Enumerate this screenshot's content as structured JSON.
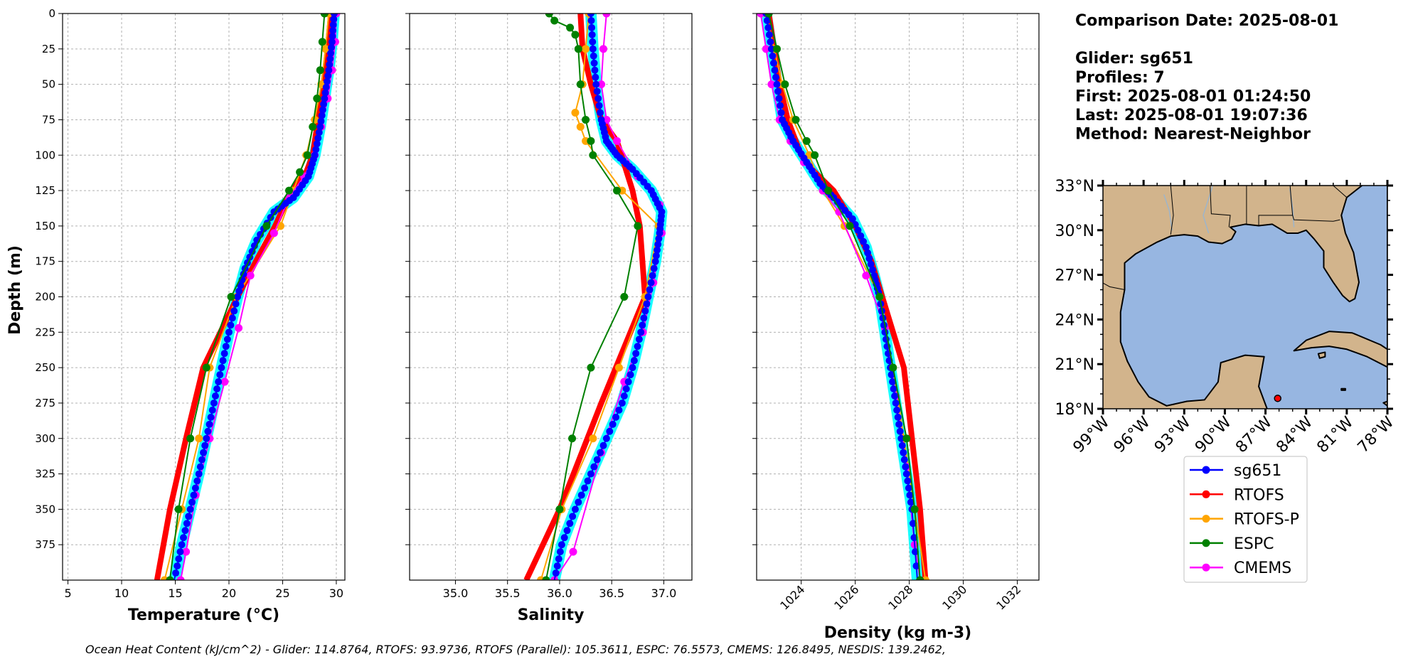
{
  "figure": {
    "ylabel": "Depth (m)",
    "footer": "Ocean Heat Content (kJ/cm^2) - Glider: 114.8764,  RTOFS: 93.9736,  RTOFS (Parallel): 105.3611,  ESPC: 76.5573,  CMEMS: 126.8495,  NESDIS: 139.2462,"
  },
  "info": {
    "lines": [
      "Comparison Date: 2025-08-01",
      "",
      "Glider: sg651",
      "Profiles: 7",
      "First: 2025-08-01 01:24:50",
      "Last: 2025-08-01 19:07:36",
      "Method: Nearest-Neighbor"
    ]
  },
  "legend": {
    "entries": [
      {
        "label": "sg651",
        "color": "#0000ff"
      },
      {
        "label": "RTOFS",
        "color": "#ff0000"
      },
      {
        "label": "RTOFS-P",
        "color": "#ffa500"
      },
      {
        "label": "ESPC",
        "color": "#008000"
      },
      {
        "label": "CMEMS",
        "color": "#ff00ff"
      }
    ]
  },
  "map": {
    "lat_labels": [
      "33°N",
      "30°N",
      "27°N",
      "24°N",
      "21°N",
      "18°N"
    ],
    "lon_labels": [
      "99°W",
      "96°W",
      "93°W",
      "90°W",
      "87°W",
      "84°W",
      "81°W",
      "78°W"
    ],
    "extent": {
      "lon": [
        -99,
        -78
      ],
      "lat": [
        18,
        33
      ]
    },
    "glider_position": {
      "lon": -86.1,
      "lat": 18.7
    },
    "land_color": "#d2b48c",
    "ocean_color": "#97b6e1"
  },
  "chart_data": [
    {
      "type": "line",
      "xlabel": "Temperature (°C)",
      "ylabel": "Depth (m)",
      "xlim": [
        4.5,
        30.8
      ],
      "ylim": [
        400,
        0
      ],
      "xticks": [
        5,
        10,
        15,
        20,
        25,
        30
      ],
      "yticks": [
        0,
        25,
        50,
        75,
        100,
        125,
        150,
        175,
        200,
        225,
        250,
        275,
        300,
        325,
        350,
        375
      ],
      "grid": true,
      "series": [
        {
          "name": "sg651",
          "color": "#0000ff",
          "x": [
            29.8,
            29.6,
            29.3,
            28.9,
            28.5,
            28.0,
            27.4,
            26.0,
            24.2,
            22.6,
            21.5,
            20.8,
            20.0,
            19.3,
            18.6,
            17.9,
            17.2,
            16.4,
            15.6,
            14.9
          ],
          "y": [
            0,
            20,
            40,
            60,
            80,
            100,
            115,
            130,
            140,
            160,
            180,
            200,
            225,
            250,
            275,
            300,
            325,
            350,
            375,
            400
          ]
        },
        {
          "name": "RTOFS",
          "color": "#ff0000",
          "x": [
            29.5,
            29.2,
            28.8,
            28.3,
            27.8,
            27.2,
            25.8,
            24.3,
            22.5,
            20.8,
            19.2,
            17.6,
            16.0,
            14.5,
            13.3
          ],
          "y": [
            0,
            25,
            50,
            75,
            100,
            112,
            125,
            150,
            175,
            200,
            225,
            250,
            300,
            350,
            400
          ]
        },
        {
          "name": "RTOFS-P",
          "color": "#ffa500",
          "x": [
            29.3,
            29.0,
            28.6,
            28.0,
            27.2,
            26.0,
            24.8,
            20.7,
            18.2,
            17.2,
            15.6,
            14.0
          ],
          "y": [
            0,
            25,
            50,
            75,
            100,
            125,
            150,
            200,
            250,
            300,
            350,
            400
          ]
        },
        {
          "name": "ESPC",
          "color": "#008000",
          "x": [
            28.9,
            28.7,
            28.5,
            28.2,
            27.8,
            27.3,
            26.6,
            25.6,
            23.5,
            20.2,
            17.9,
            16.4,
            15.3,
            14.5
          ],
          "y": [
            0,
            20,
            40,
            60,
            80,
            100,
            112,
            125,
            150,
            200,
            250,
            300,
            350,
            400
          ]
        },
        {
          "name": "CMEMS",
          "color": "#ff00ff",
          "x": [
            30.0,
            29.9,
            29.6,
            29.2,
            28.6,
            28.0,
            27.0,
            25.6,
            24.2,
            22.0,
            20.9,
            19.6,
            18.2,
            16.9,
            16.0,
            15.5
          ],
          "y": [
            0,
            20,
            40,
            60,
            80,
            100,
            115,
            130,
            155,
            185,
            222,
            260,
            300,
            340,
            380,
            400
          ]
        }
      ]
    },
    {
      "type": "line",
      "xlabel": "Salinity",
      "ylabel": "",
      "xlim": [
        34.56,
        37.27
      ],
      "ylim": [
        400,
        0
      ],
      "xticks": [
        35.0,
        35.5,
        36.0,
        36.5,
        37.0
      ],
      "grid": true,
      "series": [
        {
          "name": "sg651",
          "color": "#0000ff",
          "x": [
            36.3,
            36.32,
            36.35,
            36.4,
            36.45,
            36.55,
            36.7,
            36.88,
            36.98,
            36.96,
            36.92,
            36.85,
            36.78,
            36.7,
            36.6,
            36.45,
            36.3,
            36.15,
            36.02,
            35.95
          ],
          "y": [
            0,
            25,
            50,
            75,
            90,
            100,
            110,
            125,
            140,
            155,
            175,
            200,
            225,
            250,
            275,
            300,
            325,
            350,
            375,
            400
          ]
        },
        {
          "name": "RTOFS",
          "color": "#ff0000",
          "x": [
            36.2,
            36.22,
            36.3,
            36.4,
            36.55,
            36.7,
            36.77,
            36.82,
            36.4,
            36.0,
            35.68
          ],
          "y": [
            0,
            25,
            50,
            75,
            90,
            125,
            150,
            200,
            275,
            350,
            400
          ]
        },
        {
          "name": "RTOFS-P",
          "color": "#ffa500",
          "x": [
            36.28,
            36.25,
            36.22,
            36.15,
            36.2,
            36.25,
            36.6,
            36.95,
            36.82,
            36.57,
            36.32,
            36.02,
            35.82
          ],
          "y": [
            0,
            25,
            50,
            70,
            80,
            90,
            125,
            150,
            200,
            250,
            300,
            350,
            400
          ]
        },
        {
          "name": "ESPC",
          "color": "#008000",
          "x": [
            35.9,
            35.95,
            36.1,
            36.15,
            36.18,
            36.2,
            36.25,
            36.3,
            36.32,
            36.55,
            36.75,
            36.62,
            36.3,
            36.12,
            36.0,
            35.87
          ],
          "y": [
            0,
            5,
            10,
            15,
            25,
            50,
            75,
            90,
            100,
            125,
            150,
            200,
            250,
            300,
            350,
            400
          ]
        },
        {
          "name": "CMEMS",
          "color": "#ff00ff",
          "x": [
            36.45,
            36.42,
            36.4,
            36.45,
            36.55,
            36.75,
            36.96,
            36.98,
            36.9,
            36.8,
            36.62,
            36.4,
            36.13,
            35.95
          ],
          "y": [
            0,
            25,
            50,
            75,
            90,
            115,
            135,
            155,
            190,
            225,
            260,
            310,
            380,
            400
          ]
        }
      ]
    },
    {
      "type": "line",
      "xlabel": "Density (kg m-3)",
      "ylabel": "",
      "xlim": [
        1022.35,
        1032.8
      ],
      "ylim": [
        400,
        0
      ],
      "xticks": [
        1024,
        1026,
        1028,
        1030,
        1032
      ],
      "grid": true,
      "series": [
        {
          "name": "sg651",
          "color": "#0000ff",
          "x": [
            1022.7,
            1022.9,
            1023.1,
            1023.3,
            1023.7,
            1024.2,
            1024.7,
            1025.2,
            1025.9,
            1026.4,
            1026.7,
            1026.9,
            1027.1,
            1027.3,
            1027.5,
            1027.7,
            1027.9,
            1028.1,
            1028.3
          ],
          "y": [
            0,
            25,
            50,
            75,
            90,
            105,
            120,
            130,
            145,
            165,
            185,
            200,
            225,
            250,
            275,
            300,
            325,
            350,
            400
          ]
        },
        {
          "name": "RTOFS",
          "color": "#ff0000",
          "x": [
            1022.8,
            1023.0,
            1023.2,
            1023.5,
            1024.0,
            1024.5,
            1025.2,
            1026.0,
            1026.6,
            1027.0,
            1027.4,
            1027.8,
            1028.1,
            1028.4,
            1028.6
          ],
          "y": [
            0,
            25,
            50,
            75,
            100,
            112,
            125,
            150,
            175,
            200,
            225,
            250,
            300,
            350,
            400
          ]
        },
        {
          "name": "RTOFS-P",
          "color": "#ffa500",
          "x": [
            1022.7,
            1023.0,
            1023.3,
            1023.7,
            1024.3,
            1024.8,
            1025.6,
            1026.9,
            1027.4,
            1027.8,
            1028.2,
            1028.6
          ],
          "y": [
            0,
            25,
            50,
            75,
            100,
            125,
            150,
            200,
            250,
            300,
            350,
            400
          ]
        },
        {
          "name": "ESPC",
          "color": "#008000",
          "x": [
            1022.8,
            1023.1,
            1023.4,
            1023.8,
            1024.2,
            1024.5,
            1025.0,
            1025.8,
            1026.9,
            1027.4,
            1027.9,
            1028.2,
            1028.4
          ],
          "y": [
            0,
            25,
            50,
            75,
            90,
            100,
            125,
            150,
            200,
            250,
            300,
            350,
            400
          ]
        },
        {
          "name": "CMEMS",
          "color": "#ff00ff",
          "x": [
            1022.5,
            1022.7,
            1022.9,
            1023.2,
            1023.6,
            1024.1,
            1024.8,
            1025.4,
            1026.4,
            1027.1,
            1027.5,
            1027.9,
            1028.2,
            1028.4
          ],
          "y": [
            0,
            25,
            50,
            75,
            90,
            105,
            125,
            140,
            185,
            222,
            270,
            320,
            375,
            400
          ]
        }
      ]
    }
  ]
}
